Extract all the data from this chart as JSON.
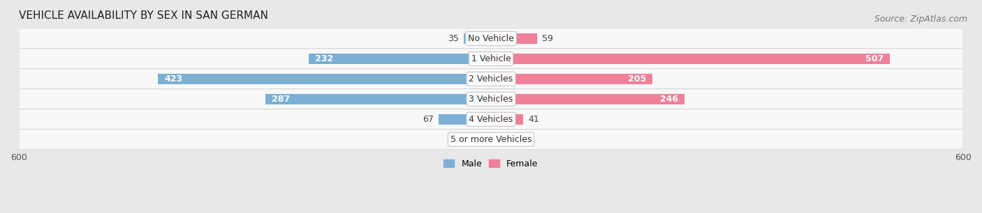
{
  "title": "VEHICLE AVAILABILITY BY SEX IN SAN GERMAN",
  "source": "Source: ZipAtlas.com",
  "categories": [
    "No Vehicle",
    "1 Vehicle",
    "2 Vehicles",
    "3 Vehicles",
    "4 Vehicles",
    "5 or more Vehicles"
  ],
  "male_values": [
    35,
    232,
    423,
    287,
    67,
    0
  ],
  "female_values": [
    59,
    507,
    205,
    246,
    41,
    0
  ],
  "male_color": "#7bafd4",
  "female_color": "#f0809a",
  "axis_max": 600,
  "background_color": "#e8e8e8",
  "row_bg_color": "#f2f2f2",
  "title_fontsize": 11,
  "source_fontsize": 9,
  "bar_height": 0.52,
  "label_fontsize": 9,
  "inside_threshold": 80
}
